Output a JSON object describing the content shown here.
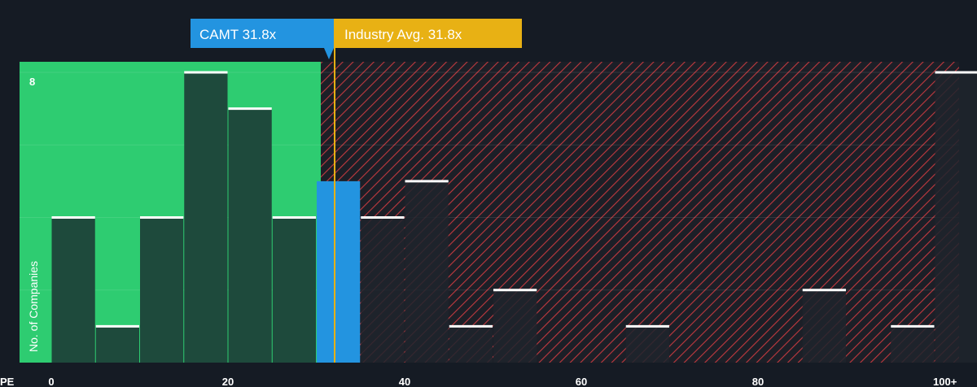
{
  "chart_data": {
    "type": "bar",
    "xlabel": "PE",
    "ylabel": "No. of Companies",
    "x_ticks": [
      "0",
      "20",
      "40",
      "60",
      "80",
      "100+"
    ],
    "y_ticks": [
      "8"
    ],
    "ylim": [
      0,
      8
    ],
    "bin_width": 5,
    "bins": [
      {
        "x": 0,
        "value": 4,
        "group": "below"
      },
      {
        "x": 5,
        "value": 1,
        "group": "below"
      },
      {
        "x": 10,
        "value": 4,
        "group": "below"
      },
      {
        "x": 15,
        "value": 8,
        "group": "below"
      },
      {
        "x": 20,
        "value": 7,
        "group": "below"
      },
      {
        "x": 25,
        "value": 4,
        "group": "below"
      },
      {
        "x": 30,
        "value": 5,
        "group": "company"
      },
      {
        "x": 35,
        "value": 4,
        "group": "above"
      },
      {
        "x": 40,
        "value": 5,
        "group": "above"
      },
      {
        "x": 45,
        "value": 1,
        "group": "above"
      },
      {
        "x": 50,
        "value": 2,
        "group": "above"
      },
      {
        "x": 65,
        "value": 1,
        "group": "above"
      },
      {
        "x": 85,
        "value": 2,
        "group": "above"
      },
      {
        "x": 95,
        "value": 1,
        "group": "above"
      },
      {
        "x": 100,
        "value": 8,
        "group": "above"
      }
    ],
    "company": {
      "label": "CAMT 31.8x",
      "value": 31.8
    },
    "industry": {
      "label": "Industry Avg. 31.8x",
      "value": 31.8
    },
    "colors": {
      "background": "#151b24",
      "below_zone": "#2ecc71",
      "below_bar": "#1e4a3c",
      "company_bar": "#2394e0",
      "above_hatch": "#c0393f",
      "above_bar": "#1f242d",
      "company_callout": "#2394e0",
      "industry_callout": "#e8b114",
      "bar_top": "#ffffff"
    }
  }
}
